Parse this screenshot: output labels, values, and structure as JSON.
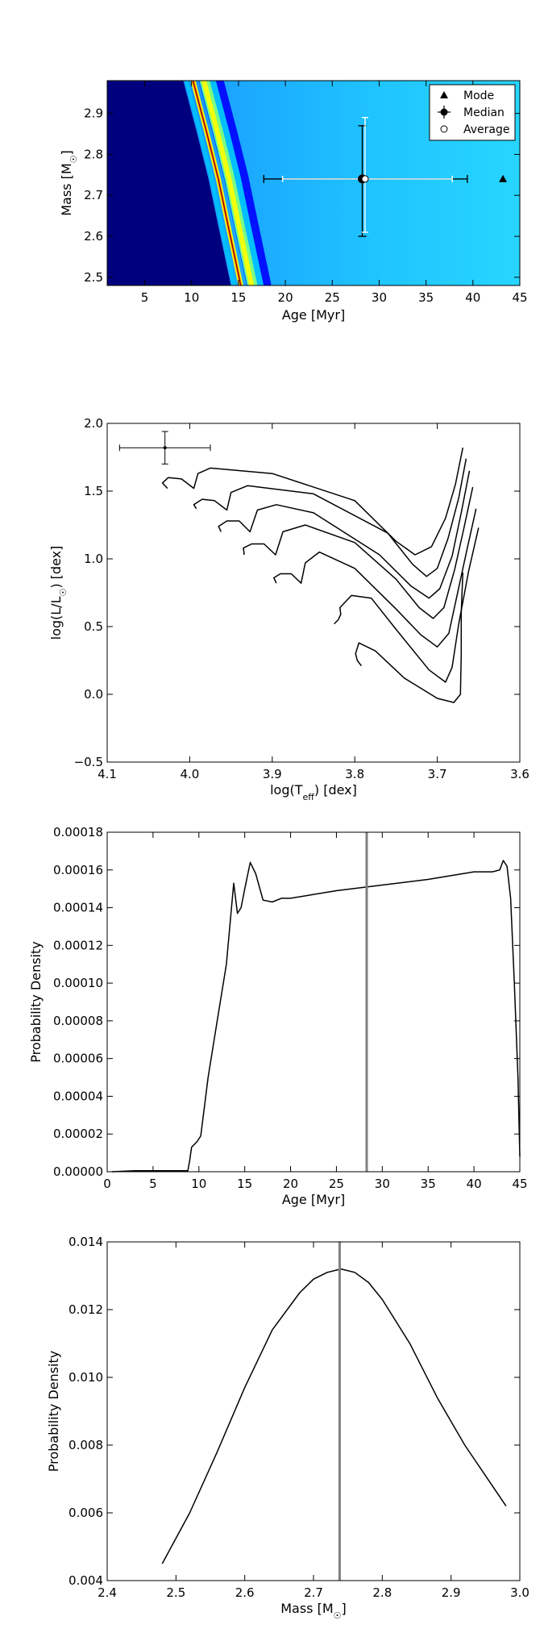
{
  "chart_data": [
    {
      "type": "heatmap",
      "xlabel": "Age [Myr]",
      "ylabel": "Mass [M☉]",
      "ylabel_main": "Mass [M",
      "ylabel_sub": "☉",
      "ylabel_close": "]",
      "xlim": [
        1,
        45
      ],
      "ylim": [
        2.48,
        2.98
      ],
      "xticks": [
        5,
        10,
        15,
        20,
        25,
        30,
        35,
        40,
        45
      ],
      "yticks": [
        2.5,
        2.6,
        2.7,
        2.8,
        2.9
      ],
      "xtick_labels": [
        "5",
        "10",
        "15",
        "20",
        "25",
        "30",
        "35",
        "40",
        "45"
      ],
      "ytick_labels": [
        "2.5",
        "2.6",
        "2.7",
        "2.8",
        "2.9"
      ],
      "colormap": [
        "#00007f",
        "#0000ff",
        "#00bfff",
        "#7fff7f",
        "#ffff00",
        "#ff7f00",
        "#7f0000"
      ],
      "ridge": [
        [
          9.1,
          2.98
        ],
        [
          10.6,
          2.85
        ],
        [
          11.8,
          2.74
        ],
        [
          12.9,
          2.62
        ],
        [
          14.2,
          2.48
        ]
      ],
      "legend": {
        "position": "upper right",
        "entries": [
          {
            "label": "Mode",
            "marker": "triangle"
          },
          {
            "label": "Median",
            "marker": "circle-errorbar"
          },
          {
            "label": "Average",
            "marker": "open-circle"
          }
        ]
      },
      "mode": {
        "age": 43.2,
        "mass": 2.74
      },
      "median": {
        "age": 28.2,
        "mass": 2.74,
        "age_err": [
          10.5,
          11.2
        ],
        "mass_err": [
          0.14,
          0.13
        ]
      },
      "average": {
        "age": 28.5,
        "mass": 2.74,
        "age_err": [
          8.8,
          9.3
        ],
        "mass_err": [
          0.13,
          0.15
        ]
      }
    },
    {
      "type": "line",
      "xlabel": "log(T_eff) [dex]",
      "xlabel_main": "log(T",
      "xlabel_sub": "eff",
      "xlabel_close": ") [dex]",
      "ylabel": "log(L/L☉) [dex]",
      "ylabel_main": "log(L/L",
      "ylabel_sub": "☉",
      "ylabel_close": ") [dex]",
      "xlim": [
        4.1,
        3.6
      ],
      "ylim": [
        -0.5,
        2.0
      ],
      "xticks": [
        4.1,
        4.0,
        3.9,
        3.8,
        3.7,
        3.6
      ],
      "yticks": [
        -0.5,
        0.0,
        0.5,
        1.0,
        1.5,
        2.0
      ],
      "xtick_labels": [
        "4.1",
        "4.0",
        "3.9",
        "3.8",
        "3.7",
        "3.6"
      ],
      "ytick_labels": [
        "−0.5",
        "0.0",
        "0.5",
        "1.0",
        "1.5",
        "2.0"
      ],
      "errorbar": {
        "x": 4.03,
        "y": 1.82,
        "xerr": [
          0.055,
          0.055
        ],
        "yerr": [
          0.12,
          0.12
        ]
      },
      "series": [
        {
          "points": [
            [
              4.027,
              1.52
            ],
            [
              4.033,
              1.56
            ],
            [
              4.026,
              1.6
            ],
            [
              4.01,
              1.59
            ],
            [
              3.995,
              1.52
            ],
            [
              3.99,
              1.63
            ],
            [
              3.975,
              1.67
            ],
            [
              3.9,
              1.63
            ],
            [
              3.8,
              1.43
            ],
            [
              3.75,
              1.13
            ],
            [
              3.727,
              1.03
            ],
            [
              3.707,
              1.09
            ],
            [
              3.69,
              1.3
            ],
            [
              3.678,
              1.55
            ],
            [
              3.669,
              1.82
            ]
          ]
        },
        {
          "points": [
            [
              3.992,
              1.37
            ],
            [
              3.995,
              1.4
            ],
            [
              3.985,
              1.44
            ],
            [
              3.97,
              1.43
            ],
            [
              3.955,
              1.36
            ],
            [
              3.95,
              1.49
            ],
            [
              3.93,
              1.54
            ],
            [
              3.85,
              1.48
            ],
            [
              3.76,
              1.19
            ],
            [
              3.73,
              0.96
            ],
            [
              3.713,
              0.87
            ],
            [
              3.7,
              0.93
            ],
            [
              3.687,
              1.15
            ],
            [
              3.674,
              1.45
            ],
            [
              3.665,
              1.74
            ]
          ]
        },
        {
          "points": [
            [
              3.962,
              1.2
            ],
            [
              3.965,
              1.24
            ],
            [
              3.955,
              1.28
            ],
            [
              3.94,
              1.28
            ],
            [
              3.927,
              1.2
            ],
            [
              3.918,
              1.36
            ],
            [
              3.895,
              1.4
            ],
            [
              3.85,
              1.34
            ],
            [
              3.77,
              1.03
            ],
            [
              3.732,
              0.8
            ],
            [
              3.71,
              0.71
            ],
            [
              3.697,
              0.78
            ],
            [
              3.682,
              1.02
            ],
            [
              3.671,
              1.34
            ],
            [
              3.661,
              1.65
            ]
          ]
        },
        {
          "points": [
            [
              3.934,
              1.03
            ],
            [
              3.935,
              1.08
            ],
            [
              3.925,
              1.11
            ],
            [
              3.91,
              1.11
            ],
            [
              3.896,
              1.03
            ],
            [
              3.887,
              1.2
            ],
            [
              3.86,
              1.25
            ],
            [
              3.8,
              1.12
            ],
            [
              3.75,
              0.85
            ],
            [
              3.722,
              0.64
            ],
            [
              3.705,
              0.56
            ],
            [
              3.692,
              0.64
            ],
            [
              3.679,
              0.92
            ],
            [
              3.668,
              1.22
            ],
            [
              3.657,
              1.53
            ]
          ]
        },
        {
          "points": [
            [
              3.895,
              0.82
            ],
            [
              3.898,
              0.86
            ],
            [
              3.89,
              0.89
            ],
            [
              3.877,
              0.89
            ],
            [
              3.865,
              0.82
            ],
            [
              3.86,
              0.97
            ],
            [
              3.843,
              1.05
            ],
            [
              3.8,
              0.93
            ],
            [
              3.75,
              0.63
            ],
            [
              3.72,
              0.44
            ],
            [
              3.7,
              0.35
            ],
            [
              3.686,
              0.45
            ],
            [
              3.675,
              0.76
            ],
            [
              3.664,
              1.07
            ],
            [
              3.653,
              1.37
            ]
          ]
        },
        {
          "points": [
            [
              3.825,
              0.52
            ],
            [
              3.82,
              0.55
            ],
            [
              3.817,
              0.59
            ],
            [
              3.818,
              0.64
            ],
            [
              3.804,
              0.73
            ],
            [
              3.78,
              0.71
            ],
            [
              3.75,
              0.48
            ],
            [
              3.71,
              0.18
            ],
            [
              3.69,
              0.09
            ],
            [
              3.682,
              0.2
            ],
            [
              3.674,
              0.52
            ],
            [
              3.662,
              0.91
            ],
            [
              3.65,
              1.23
            ]
          ]
        },
        {
          "points": [
            [
              3.792,
              0.21
            ],
            [
              3.797,
              0.25
            ],
            [
              3.799,
              0.3
            ],
            [
              3.795,
              0.38
            ],
            [
              3.775,
              0.32
            ],
            [
              3.74,
              0.12
            ],
            [
              3.7,
              -0.03
            ],
            [
              3.68,
              -0.06
            ],
            [
              3.672,
              0.0
            ],
            [
              3.671,
              0.3
            ],
            [
              3.671,
              0.6
            ],
            [
              3.669,
              0.9
            ]
          ]
        }
      ]
    },
    {
      "type": "line",
      "xlabel": "Age [Myr]",
      "ylabel": "Probability Density",
      "xlim": [
        0,
        45
      ],
      "ylim": [
        0,
        0.00018
      ],
      "xticks": [
        0,
        5,
        10,
        15,
        20,
        25,
        30,
        35,
        40,
        45
      ],
      "yticks": [
        0,
        2e-05,
        4e-05,
        6e-05,
        8e-05,
        0.0001,
        0.00012,
        0.00014,
        0.00016,
        0.00018
      ],
      "xtick_labels": [
        "0",
        "5",
        "10",
        "15",
        "20",
        "25",
        "30",
        "35",
        "40",
        "45"
      ],
      "ytick_labels": [
        "0.00000",
        "0.00002",
        "0.00004",
        "0.00006",
        "0.00008",
        "0.00010",
        "0.00012",
        "0.00014",
        "0.00016",
        "0.00018"
      ],
      "vline": 28.3,
      "x": [
        0.5,
        3.0,
        8.8,
        9.0,
        9.2,
        9.8,
        10.2,
        11.0,
        12.0,
        13.0,
        13.8,
        14.2,
        14.6,
        15.0,
        15.6,
        16.2,
        17.0,
        18.0,
        19.0,
        20.0,
        25.0,
        30.0,
        35.0,
        40.0,
        42.0,
        42.8,
        43.2,
        43.6,
        44.0,
        44.4,
        44.8,
        45.0
      ],
      "y": [
        0,
        5e-07,
        5e-07,
        6e-06,
        1.3e-05,
        1.6e-05,
        1.9e-05,
        5e-05,
        8e-05,
        0.00011,
        0.000153,
        0.000137,
        0.00014,
        0.00015,
        0.000164,
        0.000158,
        0.000144,
        0.000143,
        0.000145,
        0.000145,
        0.000149,
        0.000152,
        0.000155,
        0.000159,
        0.000159,
        0.00016,
        0.000165,
        0.000162,
        0.000145,
        0.0001,
        5e-05,
        8e-06
      ]
    },
    {
      "type": "line",
      "xlabel": "Mass [M☉]",
      "xlabel_main": "Mass [M",
      "xlabel_sub": "☉",
      "xlabel_close": "]",
      "ylabel": "Probability Density",
      "xlim": [
        2.4,
        3.0
      ],
      "ylim": [
        0.004,
        0.014
      ],
      "xticks": [
        2.4,
        2.5,
        2.6,
        2.7,
        2.8,
        2.9,
        3.0
      ],
      "yticks": [
        0.004,
        0.006,
        0.008,
        0.01,
        0.012,
        0.014
      ],
      "xtick_labels": [
        "2.4",
        "2.5",
        "2.6",
        "2.7",
        "2.8",
        "2.9",
        "3.0"
      ],
      "ytick_labels": [
        "0.004",
        "0.006",
        "0.008",
        "0.010",
        "0.012",
        "0.014"
      ],
      "vline": 2.738,
      "x": [
        2.48,
        2.52,
        2.56,
        2.6,
        2.64,
        2.68,
        2.7,
        2.72,
        2.74,
        2.76,
        2.78,
        2.8,
        2.84,
        2.88,
        2.92,
        2.96,
        2.98
      ],
      "y": [
        0.0045,
        0.006,
        0.0078,
        0.0097,
        0.0114,
        0.0125,
        0.0129,
        0.0131,
        0.0132,
        0.0131,
        0.0128,
        0.0123,
        0.011,
        0.0094,
        0.008,
        0.0068,
        0.0062
      ]
    }
  ]
}
